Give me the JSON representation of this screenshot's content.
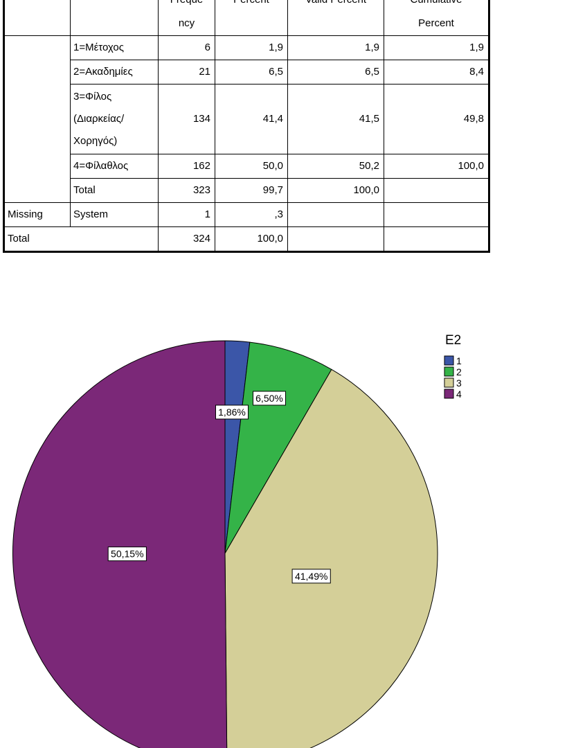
{
  "table": {
    "headers": [
      "Freque",
      "ncy",
      "Percent",
      "Valid Percent",
      "Cumulative",
      "Percent"
    ],
    "valid_rows": [
      {
        "label": "1=Μέτοχος",
        "frequency": "6",
        "percent": "1,9",
        "valid_percent": "1,9",
        "cumulative": "1,9"
      },
      {
        "label": "2=Ακαδημίες",
        "frequency": "21",
        "percent": "6,5",
        "valid_percent": "6,5",
        "cumulative": "8,4"
      },
      {
        "label_lines": [
          "3=Φίλος",
          "(Διαρκείας/",
          "Χορηγός)"
        ],
        "frequency": "134",
        "percent": "41,4",
        "valid_percent": "41,5",
        "cumulative": "49,8"
      },
      {
        "label": "4=Φίλαθλος",
        "frequency": "162",
        "percent": "50,0",
        "valid_percent": "50,2",
        "cumulative": "100,0"
      },
      {
        "label": "Total",
        "frequency": "323",
        "percent": "99,7",
        "valid_percent": "100,0",
        "cumulative": ""
      }
    ],
    "missing": {
      "group": "Missing",
      "label": "System",
      "frequency": "1",
      "percent": ",3"
    },
    "total": {
      "label": "Total",
      "frequency": "324",
      "percent": "100,0"
    }
  },
  "chart_data": {
    "type": "pie",
    "legend_title": "E2",
    "legend_position": "top-right",
    "categories": [
      "1",
      "2",
      "3",
      "4"
    ],
    "values": [
      1.86,
      6.5,
      41.49,
      50.15
    ],
    "labels": [
      "1,86%",
      "6,50%",
      "41,49%",
      "50,15%"
    ],
    "colors": [
      "#3b56a8",
      "#34b348",
      "#d4cf98",
      "#7b2878"
    ]
  }
}
